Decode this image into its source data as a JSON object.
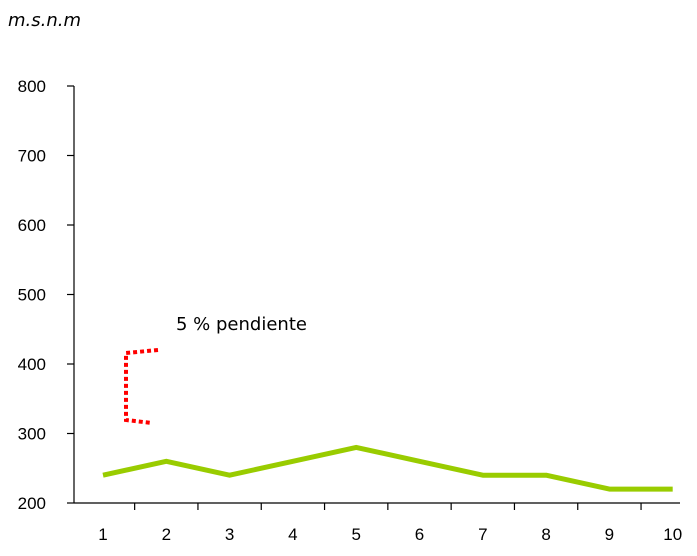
{
  "chart_data": {
    "type": "line",
    "ylabel": "m.s.n.m",
    "x": [
      1,
      2,
      3,
      4,
      5,
      6,
      7,
      8,
      9,
      10
    ],
    "x_tick_labels": [
      "1",
      "2",
      "3",
      "4",
      "5",
      "6",
      "7",
      "8",
      "9",
      "10"
    ],
    "y_tick_labels": [
      "200",
      "300",
      "400",
      "500",
      "600",
      "700",
      "800"
    ],
    "ylim": [
      200,
      800
    ],
    "series": [
      {
        "values": [
          240,
          260,
          240,
          260,
          280,
          260,
          240,
          240,
          220,
          220
        ]
      }
    ],
    "annotation": {
      "text": "5 % pendiente"
    },
    "grid": false,
    "colors": {
      "series": "#99cc00",
      "annotation_bracket": "#ff0000"
    }
  }
}
